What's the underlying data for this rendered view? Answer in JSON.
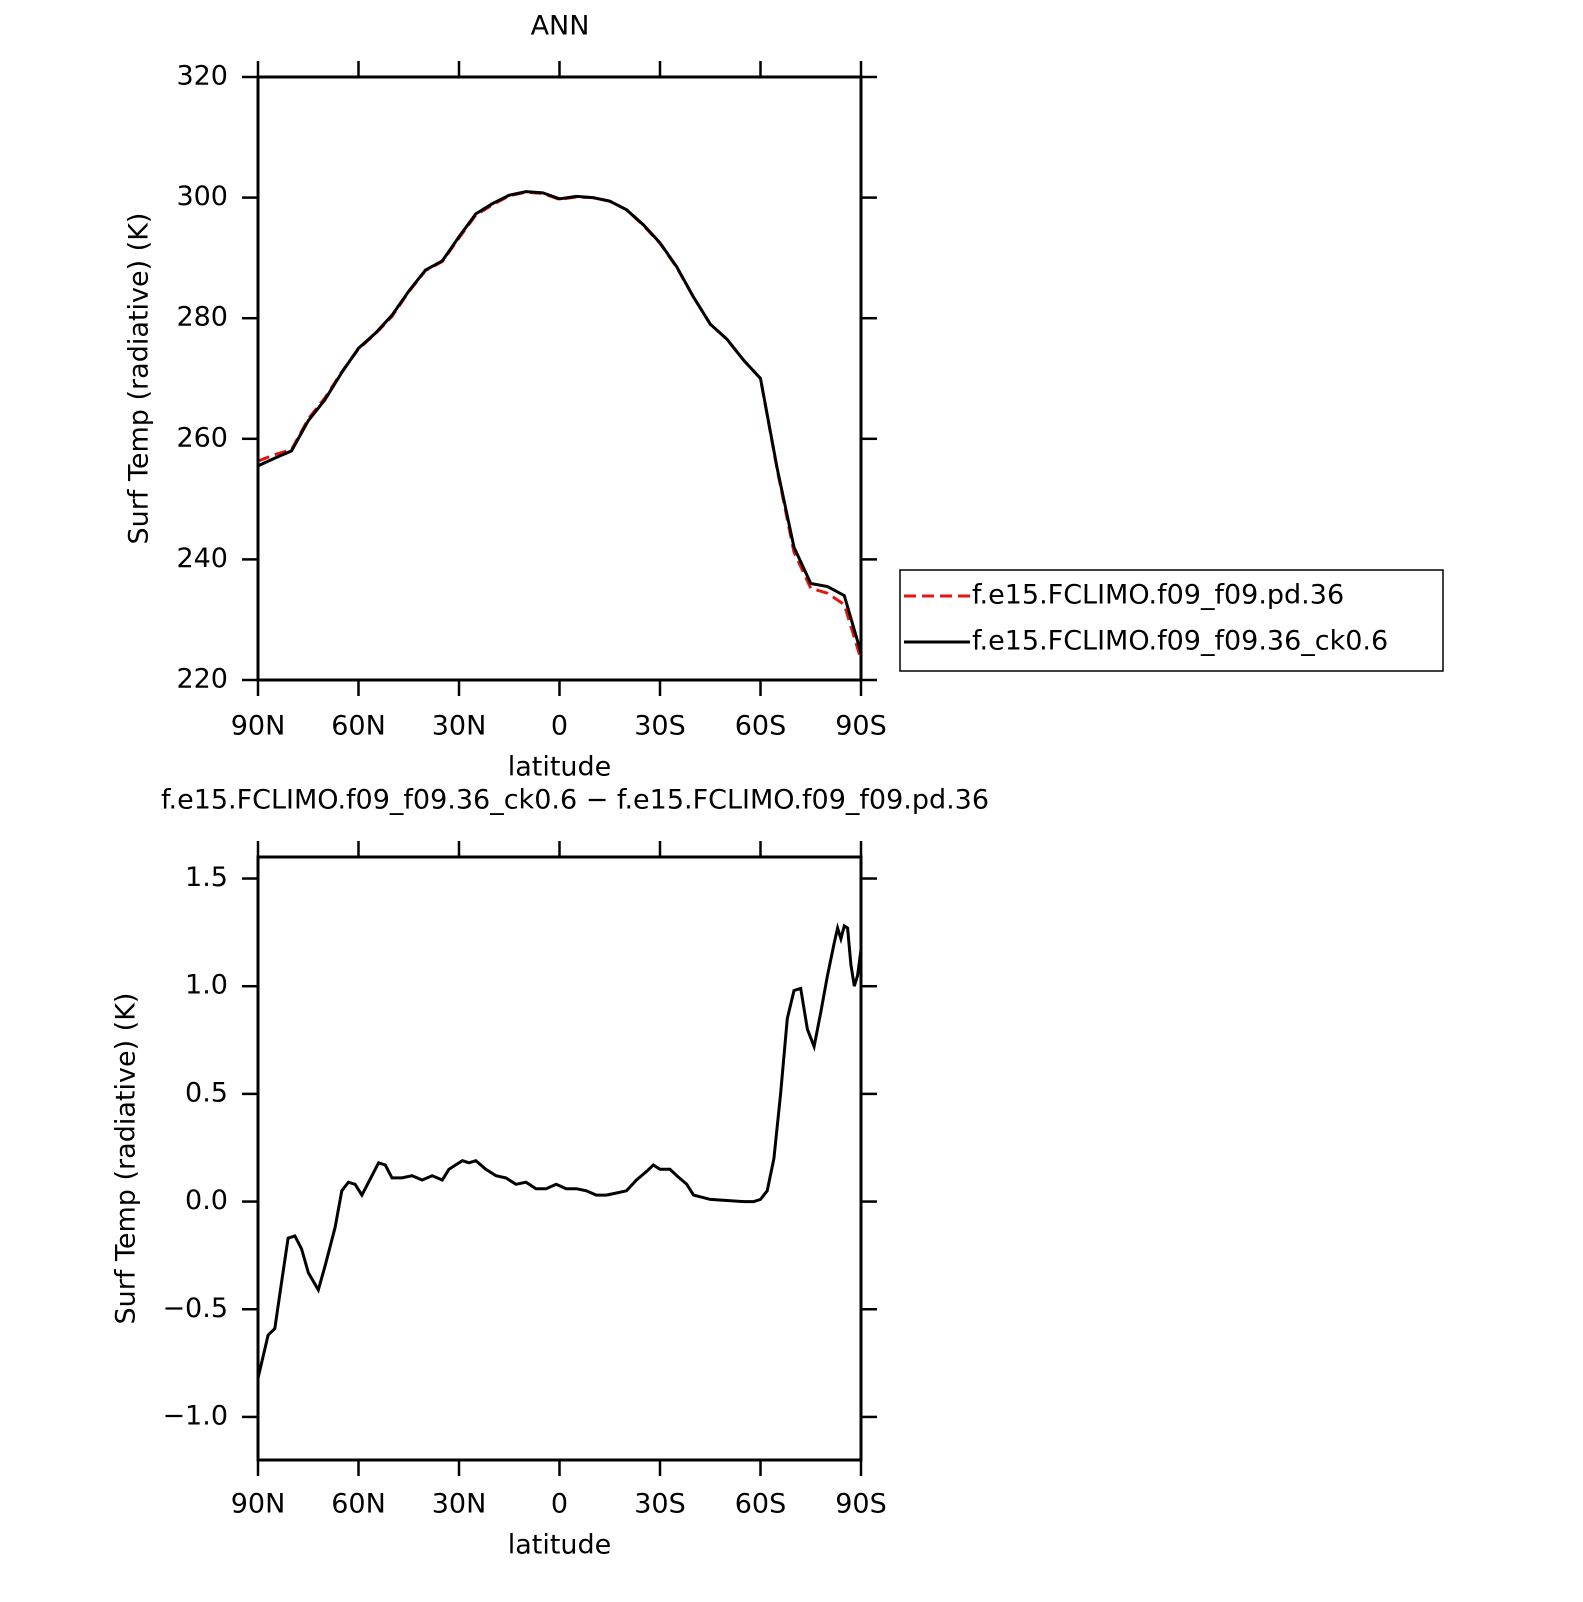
{
  "chart_data": [
    {
      "type": "line",
      "title": "ANN",
      "xlabel": "latitude",
      "ylabel": "Surf Temp (radiative) (K)",
      "xlim": [
        90,
        -90
      ],
      "xticks": [
        {
          "value": 90,
          "label": "90N"
        },
        {
          "value": 60,
          "label": "60N"
        },
        {
          "value": 30,
          "label": "30N"
        },
        0,
        {
          "value": -30,
          "label": "30S"
        },
        {
          "value": -60,
          "label": "60S"
        },
        {
          "value": -90,
          "label": "90S"
        }
      ],
      "ylim": [
        220,
        320
      ],
      "yticks": [
        220,
        240,
        260,
        280,
        300,
        320
      ],
      "x": [
        90,
        85,
        80,
        75,
        70,
        65,
        60,
        55,
        50,
        45,
        40,
        35,
        30,
        25,
        20,
        15,
        10,
        5,
        0,
        -5,
        -10,
        -15,
        -20,
        -25,
        -30,
        -35,
        -40,
        -45,
        -50,
        -55,
        -60,
        -65,
        -70,
        -75,
        -80,
        -85,
        -90
      ],
      "legend": "right",
      "series": [
        {
          "name": "f.e15.FCLIMO.f09_f09.pd.36",
          "color": "#e8150f",
          "dash": true,
          "values": [
            256.3,
            257.4,
            258.2,
            263.3,
            266.8,
            271.1,
            274.9,
            277.4,
            280.3,
            284.4,
            287.9,
            289.4,
            293.3,
            297.1,
            298.8,
            300.3,
            300.9,
            300.7,
            299.7,
            300.1,
            300.0,
            299.4,
            298.0,
            295.4,
            292.4,
            288.4,
            283.5,
            279.0,
            276.5,
            273.0,
            270.0,
            254.8,
            241.2,
            235.2,
            234.4,
            232.5,
            223.4
          ]
        },
        {
          "name": "f.e15.FCLIMO.f09_f09.36_ck0.6",
          "color": "#000000",
          "dash": false,
          "values": [
            255.5,
            256.8,
            258.0,
            263.0,
            266.5,
            271.0,
            275.0,
            277.5,
            280.5,
            284.5,
            288.0,
            289.5,
            293.5,
            297.3,
            299.0,
            300.4,
            301.0,
            300.8,
            299.8,
            300.2,
            300.0,
            299.4,
            298.0,
            295.5,
            292.5,
            288.5,
            283.5,
            279.0,
            276.5,
            273.0,
            270.0,
            255.0,
            242.0,
            236.0,
            235.5,
            234.0,
            224.5
          ]
        }
      ]
    },
    {
      "type": "line",
      "title": "f.e15.FCLIMO.f09_f09.36_ck0.6 − f.e15.FCLIMO.f09_f09.pd.36",
      "xlabel": "latitude",
      "ylabel": "Surf Temp (radiative) (K)",
      "xlim": [
        90,
        -90
      ],
      "xticks": [
        {
          "value": 90,
          "label": "90N"
        },
        {
          "value": 60,
          "label": "60N"
        },
        {
          "value": 30,
          "label": "30N"
        },
        0,
        {
          "value": -30,
          "label": "30S"
        },
        {
          "value": -60,
          "label": "60S"
        },
        {
          "value": -90,
          "label": "90S"
        }
      ],
      "ylim": [
        -1.2,
        1.6
      ],
      "yticks": [
        {
          "value": -1,
          "label": "−1.0"
        },
        {
          "value": -0.5,
          "label": "−0.5"
        },
        {
          "value": 0,
          "label": "0.0"
        },
        0.5,
        {
          "value": 1,
          "label": "1.0"
        },
        1.5
      ],
      "x": [
        90,
        87,
        85,
        83,
        81,
        79,
        77,
        75,
        72,
        70,
        67,
        65,
        63,
        61,
        59,
        57,
        54,
        52,
        50,
        47,
        44,
        41,
        38,
        35,
        33,
        31,
        29,
        27,
        25,
        22,
        19,
        16,
        13,
        10,
        7,
        4,
        1,
        -2,
        -5,
        -8,
        -11,
        -14,
        -17,
        -20,
        -23,
        -26,
        -28,
        -30,
        -33,
        -35,
        -38,
        -40,
        -45,
        -50,
        -55,
        -58,
        -60,
        -62,
        -64,
        -66,
        -68,
        -70,
        -72,
        -74,
        -76,
        -78,
        -80,
        -82,
        -83,
        -84,
        -85,
        -86,
        -87,
        -88,
        -89,
        -90
      ],
      "series": [
        {
          "name": "f.e15.FCLIMO.f09_f09.36_ck0.6 − f.e15.FCLIMO.f09_f09.pd.36",
          "color": "#000000",
          "dash": false,
          "values": [
            -0.82,
            -0.62,
            -0.59,
            -0.38,
            -0.17,
            -0.16,
            -0.22,
            -0.33,
            -0.41,
            -0.3,
            -0.12,
            0.05,
            0.09,
            0.08,
            0.03,
            0.09,
            0.18,
            0.17,
            0.11,
            0.11,
            0.12,
            0.1,
            0.12,
            0.1,
            0.15,
            0.17,
            0.19,
            0.18,
            0.19,
            0.15,
            0.12,
            0.11,
            0.08,
            0.09,
            0.06,
            0.06,
            0.08,
            0.06,
            0.06,
            0.05,
            0.03,
            0.03,
            0.04,
            0.05,
            0.1,
            0.14,
            0.17,
            0.15,
            0.15,
            0.12,
            0.08,
            0.03,
            0.01,
            0.005,
            0.0,
            0.0,
            0.01,
            0.05,
            0.2,
            0.5,
            0.85,
            0.98,
            0.99,
            0.8,
            0.72,
            0.88,
            1.05,
            1.2,
            1.27,
            1.22,
            1.28,
            1.27,
            1.1,
            1.0,
            1.05,
            1.17
          ]
        }
      ]
    }
  ]
}
